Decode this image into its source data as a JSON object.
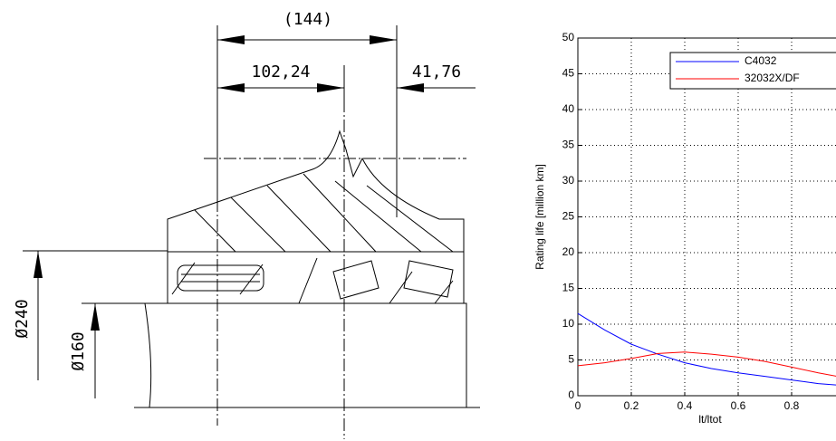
{
  "drawing": {
    "dimensions": [
      "(144)",
      "102,24",
      "41,76",
      "Ø240",
      "Ø160"
    ]
  },
  "chart_data": {
    "type": "line",
    "x_label": "lt/ltot",
    "y_label": "Rating life [million km]",
    "x": [
      0,
      0.1,
      0.2,
      0.3,
      0.4,
      0.5,
      0.6,
      0.7,
      0.8,
      0.9,
      1.0
    ],
    "series": [
      {
        "name": "C4032",
        "color": "#0000ff",
        "values": [
          11.5,
          9.2,
          7.2,
          5.8,
          4.6,
          3.8,
          3.2,
          2.7,
          2.2,
          1.7,
          1.4
        ]
      },
      {
        "name": "32032X/DF",
        "color": "#ff0000",
        "values": [
          4.2,
          4.6,
          5.2,
          5.9,
          6.1,
          5.8,
          5.4,
          4.8,
          4.0,
          3.2,
          2.5
        ]
      }
    ],
    "xlim": [
      0,
      1
    ],
    "xticks": [
      0,
      0.2,
      0.4,
      0.6,
      0.8
    ],
    "ylim": [
      0,
      50
    ],
    "yticks": [
      0,
      5,
      10,
      15,
      20,
      25,
      30,
      35,
      40,
      45,
      50
    ],
    "grid": true,
    "legend": "top-right"
  }
}
